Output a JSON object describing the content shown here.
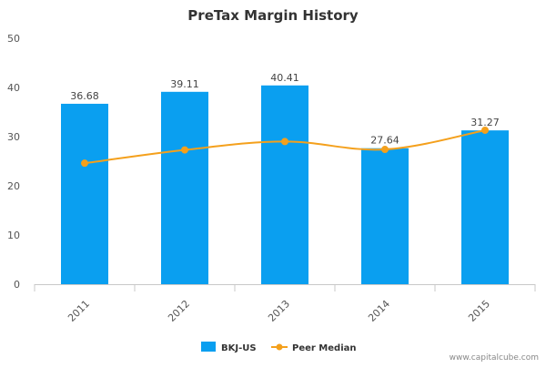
{
  "chart_data": {
    "type": "bar",
    "title": "PreTax Margin History",
    "categories": [
      "2011",
      "2012",
      "2013",
      "2014",
      "2015"
    ],
    "series": [
      {
        "name": "BKJ-US",
        "kind": "bar",
        "color": "#0a9ff0",
        "values": [
          36.68,
          39.11,
          40.41,
          27.64,
          31.27
        ],
        "labels": [
          "36.68",
          "39.11",
          "40.41",
          "27.64",
          "31.27"
        ]
      },
      {
        "name": "Peer Median",
        "kind": "line",
        "color": "#f4a01c",
        "values": [
          24.6,
          27.3,
          29.0,
          27.4,
          31.3
        ]
      }
    ],
    "ylim": [
      0,
      50
    ],
    "yticks": [
      "0",
      "10",
      "20",
      "30",
      "40",
      "50"
    ],
    "xlabel": "",
    "ylabel": "",
    "grid": false,
    "legend_position": "bottom-center"
  },
  "footer": {
    "credit": "www.capitalcube.com"
  }
}
